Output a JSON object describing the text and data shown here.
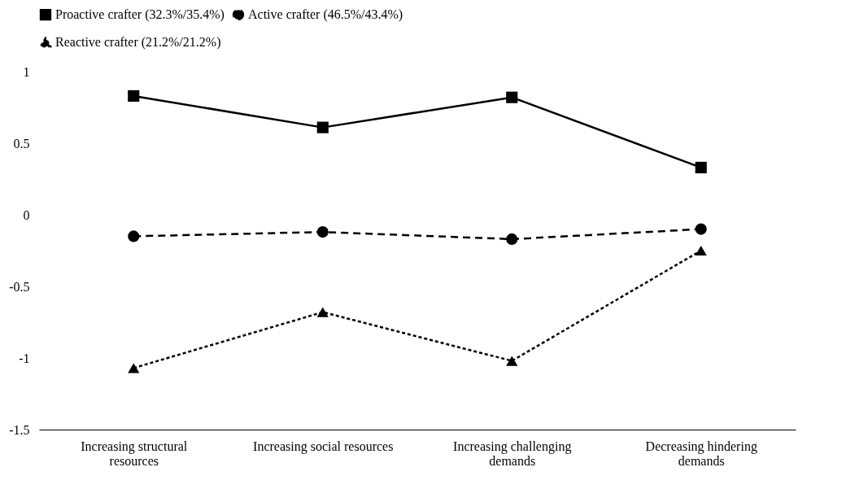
{
  "chart_data": {
    "type": "line",
    "categories": [
      "Increasing structural resources",
      "Increasing social resources",
      "Increasing challenging demands",
      "Decreasing hindering demands"
    ],
    "series": [
      {
        "name": "Proactive crafter (32.3%/35.4%)",
        "color": "#000000",
        "marker": "square",
        "line_style": "solid",
        "values": [
          0.83,
          0.61,
          0.82,
          0.33
        ]
      },
      {
        "name": "Active crafter (46.5%/43.4%)",
        "color": "#000000",
        "marker": "circle",
        "line_style": "dashed",
        "values": [
          -0.15,
          -0.12,
          -0.17,
          -0.1
        ]
      },
      {
        "name": "Reactive crafter (21.2%/21.2%)",
        "color": "#000000",
        "marker": "triangle",
        "line_style": "dotted",
        "values": [
          -1.07,
          -0.68,
          -1.02,
          -0.25
        ]
      }
    ],
    "ylim": [
      -1.5,
      1
    ],
    "yticks": [
      -1.5,
      -1,
      -0.5,
      0,
      0.5,
      1
    ],
    "grid": false,
    "legend": "top"
  }
}
